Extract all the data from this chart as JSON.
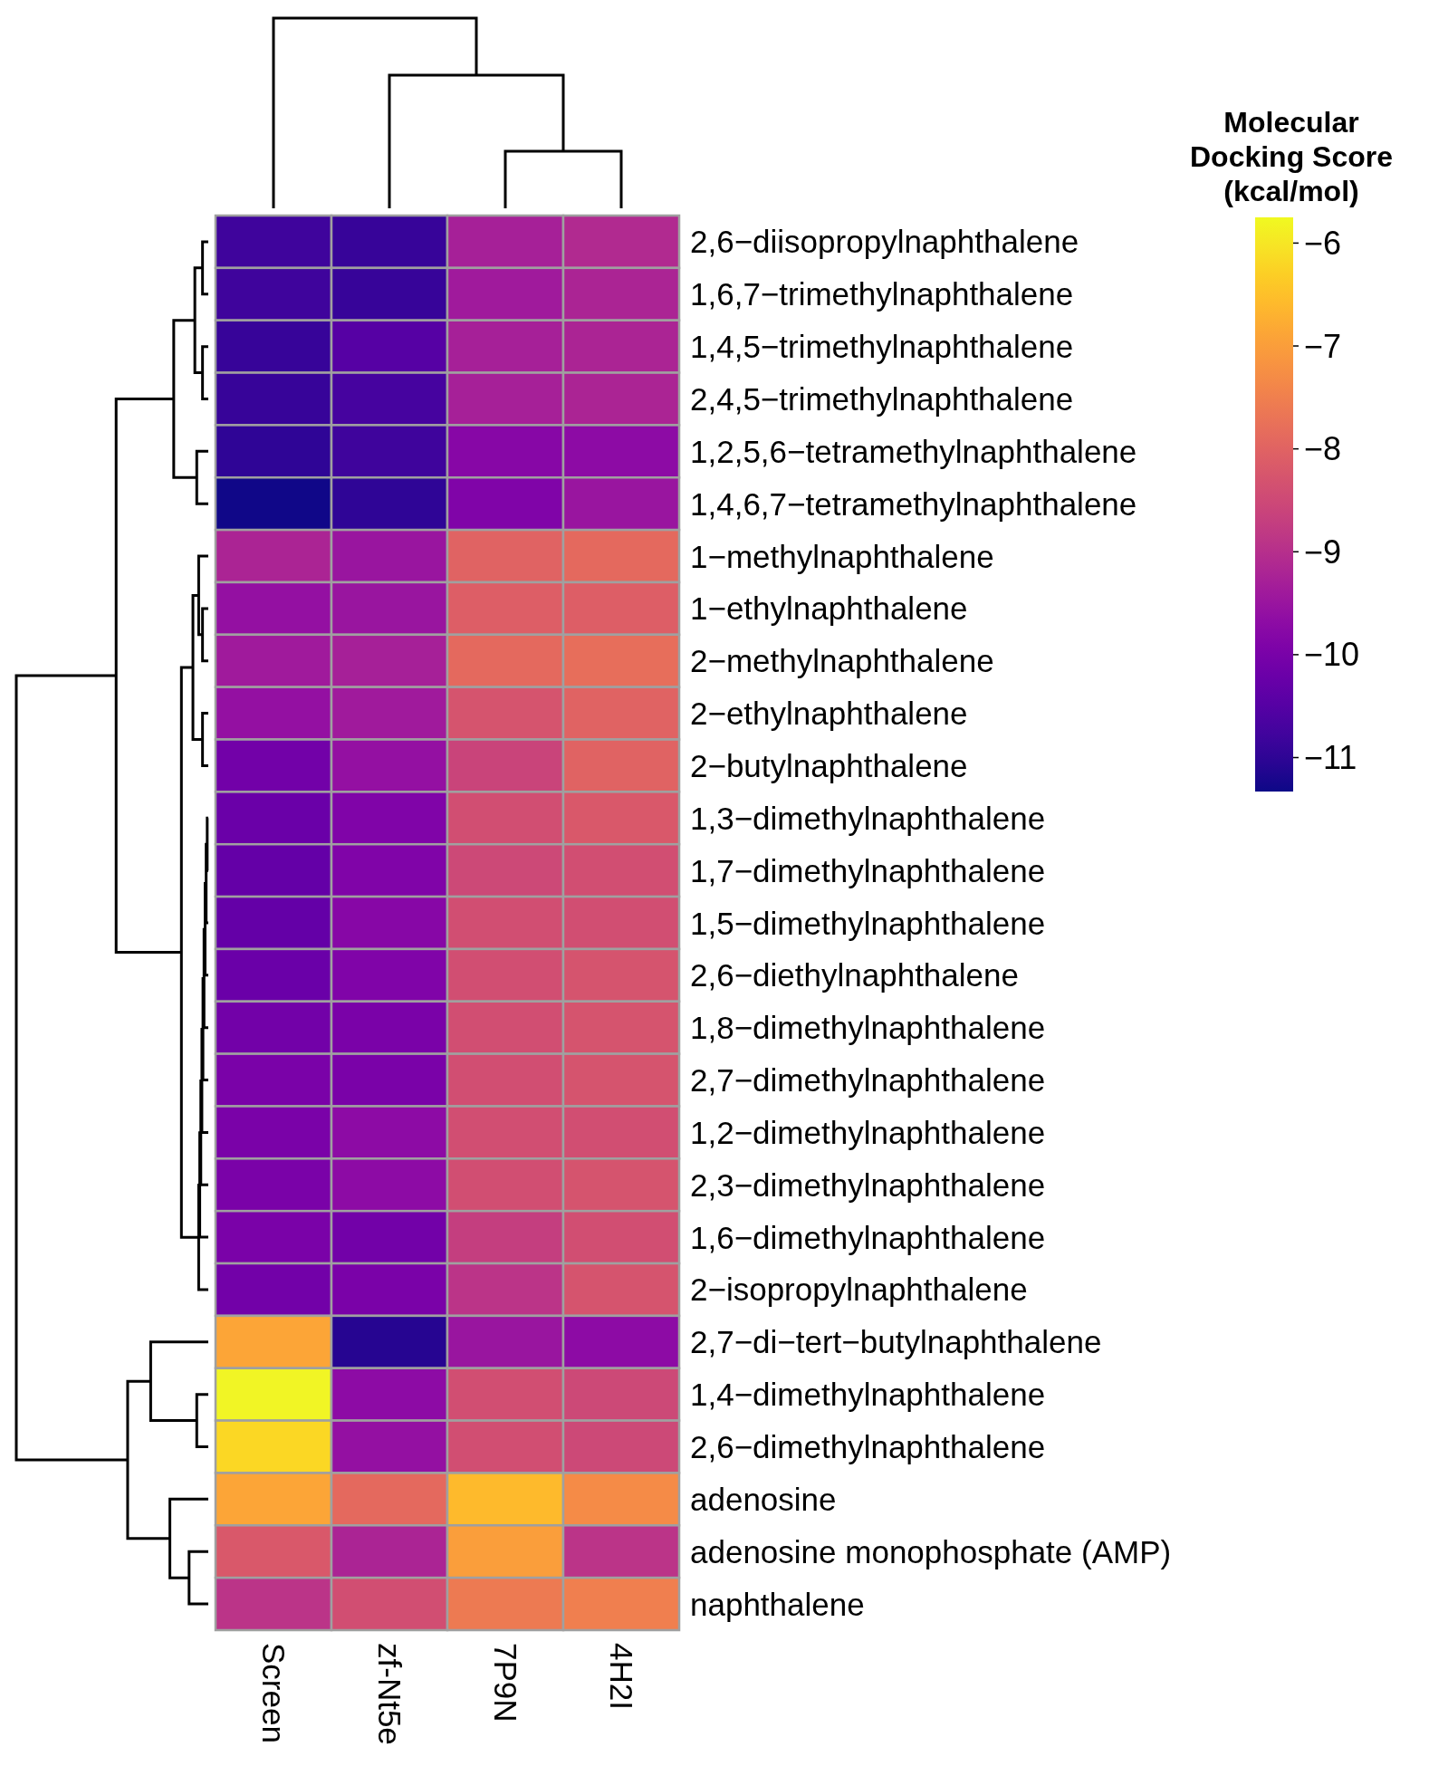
{
  "chart_data": {
    "type": "heatmap",
    "clabel": "Molecular Docking Score (kcal/mol)",
    "categories": [
      "Screen",
      "zf-Nt5e",
      "7P9N",
      "4H2I"
    ],
    "y_categories": [
      "2,6−diisopropylnaphthalene",
      "1,6,7−trimethylnaphthalene",
      "1,4,5−trimethylnaphthalene",
      "2,4,5−trimethylnaphthalene",
      "1,2,5,6−tetramethylnaphthalene",
      "1,4,6,7−tetramethylnaphthalene",
      "1−methylnaphthalene",
      "1−ethylnaphthalene",
      "2−methylnaphthalene",
      "2−ethylnaphthalene",
      "2−butylnaphthalene",
      "1,3−dimethylnaphthalene",
      "1,7−dimethylnaphthalene",
      "1,5−dimethylnaphthalene",
      "2,6−diethylnaphthalene",
      "1,8−dimethylnaphthalene",
      "2,7−dimethylnaphthalene",
      "1,2−dimethylnaphthalene",
      "2,3−dimethylnaphthalene",
      "1,6−dimethylnaphthalene",
      "2−isopropylnaphthalene",
      "2,7−di−tert−butylnaphthalene",
      "1,4−dimethylnaphthalene",
      "2,6−dimethylnaphthalene",
      "adenosine",
      "adenosine monophosphate (AMP)",
      "naphthalene"
    ],
    "cells": [
      [
        -10.8,
        -10.9,
        -9.3,
        -9.1
      ],
      [
        -10.8,
        -10.9,
        -9.4,
        -9.2
      ],
      [
        -10.9,
        -10.5,
        -9.3,
        -9.2
      ],
      [
        -10.9,
        -10.7,
        -9.3,
        -9.2
      ],
      [
        -11.0,
        -10.8,
        -9.8,
        -9.7
      ],
      [
        -11.3,
        -11.0,
        -9.9,
        -9.5
      ],
      [
        -9.2,
        -9.5,
        -8.0,
        -7.9
      ],
      [
        -9.6,
        -9.5,
        -8.1,
        -8.1
      ],
      [
        -9.4,
        -9.3,
        -7.9,
        -7.8
      ],
      [
        -9.6,
        -9.4,
        -8.3,
        -8.0
      ],
      [
        -10.1,
        -9.6,
        -8.6,
        -8.0
      ],
      [
        -10.2,
        -9.9,
        -8.4,
        -8.2
      ],
      [
        -10.3,
        -9.9,
        -8.5,
        -8.4
      ],
      [
        -10.3,
        -9.8,
        -8.4,
        -8.4
      ],
      [
        -10.2,
        -9.9,
        -8.4,
        -8.3
      ],
      [
        -10.1,
        -10.0,
        -8.4,
        -8.3
      ],
      [
        -10.0,
        -10.0,
        -8.4,
        -8.3
      ],
      [
        -10.0,
        -9.7,
        -8.4,
        -8.4
      ],
      [
        -10.0,
        -9.7,
        -8.4,
        -8.3
      ],
      [
        -10.0,
        -10.1,
        -8.7,
        -8.4
      ],
      [
        -10.1,
        -10.0,
        -8.9,
        -8.3
      ],
      [
        -6.9,
        -11.1,
        -9.5,
        -9.7
      ],
      [
        -5.8,
        -9.7,
        -8.4,
        -8.5
      ],
      [
        -6.2,
        -9.6,
        -8.4,
        -8.5
      ],
      [
        -6.9,
        -7.9,
        -6.6,
        -7.3
      ],
      [
        -8.2,
        -9.2,
        -7.0,
        -8.9
      ],
      [
        -8.9,
        -8.4,
        -7.6,
        -7.5
      ]
    ],
    "clim": [
      -11.33,
      -5.75
    ],
    "cticks": [
      {
        "value": -11,
        "label": "−11"
      },
      {
        "value": -10,
        "label": "−10"
      },
      {
        "value": -9,
        "label": "−9"
      },
      {
        "value": -8,
        "label": "−8"
      },
      {
        "value": -7,
        "label": "−7"
      },
      {
        "value": -6,
        "label": "−6"
      }
    ]
  }
}
